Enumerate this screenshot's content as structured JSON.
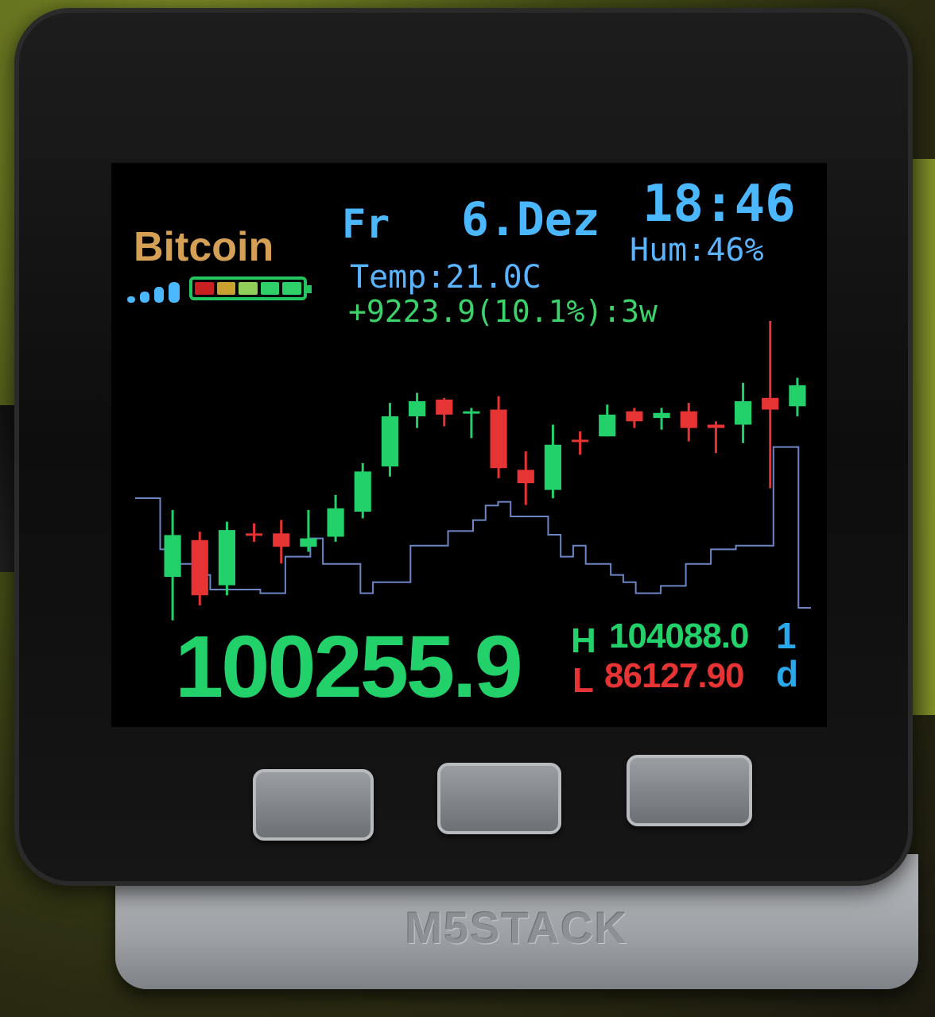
{
  "device": {
    "brand": "M5STACK",
    "buttons": [
      "button-a",
      "button-b",
      "button-c"
    ]
  },
  "header": {
    "coin_name": "Bitcoin",
    "wifi_bars": 4,
    "battery": {
      "cells": 5,
      "cell_colors": [
        "#c82020",
        "#c8a030",
        "#8fcf5a",
        "#2fcf6a",
        "#2fcf6a"
      ]
    },
    "day": "Fr",
    "date": "6.Dez",
    "time": "18:46",
    "temperature": "Temp:21.0C",
    "humidity": "Hum:46%",
    "change": "+9223.9(10.1%):3w"
  },
  "ticker": {
    "price": "100255.9",
    "high_label": "H",
    "high_value": "104088.0",
    "low_label": "L",
    "low_value": "86127.90",
    "period_number": "1",
    "period_unit": "d"
  },
  "colors": {
    "up": "#22d16a",
    "down": "#e63333",
    "line": "#6c86c4",
    "accent_blue": "#4ab7ff",
    "coin_gold": "#d4a055"
  },
  "chart_data": {
    "type": "candlestick",
    "candles": [
      {
        "open": 88800,
        "high": 92800,
        "low": 86200,
        "close": 91300
      },
      {
        "open": 91000,
        "high": 91500,
        "low": 87100,
        "close": 87700
      },
      {
        "open": 88300,
        "high": 92100,
        "low": 87700,
        "close": 91600
      },
      {
        "open": 91400,
        "high": 92000,
        "low": 90900,
        "close": 91300
      },
      {
        "open": 91400,
        "high": 92200,
        "low": 89600,
        "close": 90600
      },
      {
        "open": 90600,
        "high": 92800,
        "low": 90300,
        "close": 91100
      },
      {
        "open": 91200,
        "high": 93700,
        "low": 90900,
        "close": 92900
      },
      {
        "open": 92700,
        "high": 95600,
        "low": 92300,
        "close": 95100
      },
      {
        "open": 95400,
        "high": 99200,
        "low": 94800,
        "close": 98400
      },
      {
        "open": 98400,
        "high": 99800,
        "low": 97700,
        "close": 99300
      },
      {
        "open": 99400,
        "high": 99500,
        "low": 97800,
        "close": 98500
      },
      {
        "open": 98600,
        "high": 98900,
        "low": 97100,
        "close": 98700
      },
      {
        "open": 98800,
        "high": 99600,
        "low": 94700,
        "close": 95300
      },
      {
        "open": 95200,
        "high": 96300,
        "low": 93100,
        "close": 94400
      },
      {
        "open": 94000,
        "high": 97900,
        "low": 93500,
        "close": 96700
      },
      {
        "open": 97000,
        "high": 97500,
        "low": 96100,
        "close": 96900
      },
      {
        "open": 97200,
        "high": 99100,
        "low": 97200,
        "close": 98500
      },
      {
        "open": 98700,
        "high": 98900,
        "low": 97700,
        "close": 98100
      },
      {
        "open": 98300,
        "high": 98900,
        "low": 97600,
        "close": 98600
      },
      {
        "open": 98700,
        "high": 99200,
        "low": 96900,
        "close": 97700
      },
      {
        "open": 97900,
        "high": 98100,
        "low": 96200,
        "close": 97700
      },
      {
        "open": 97900,
        "high": 100400,
        "low": 96800,
        "close": 99300
      },
      {
        "open": 99500,
        "high": 104100,
        "low": 94100,
        "close": 98800
      },
      {
        "open": 99000,
        "high": 100700,
        "low": 98400,
        "close": 100255.9
      }
    ],
    "volume_line": [
      30,
      30,
      16,
      12,
      12,
      9,
      5,
      5,
      5,
      5,
      4,
      4,
      14,
      14,
      19,
      12,
      12,
      12,
      4,
      7,
      7,
      7,
      17,
      17,
      17,
      21,
      21,
      24,
      28,
      29,
      25,
      25,
      25,
      20,
      14,
      17,
      12,
      12,
      9,
      7,
      4,
      4,
      6,
      6,
      12,
      12,
      16,
      16,
      17,
      17,
      17,
      44,
      44,
      0,
      0
    ],
    "ylim": [
      86000,
      105000
    ]
  }
}
